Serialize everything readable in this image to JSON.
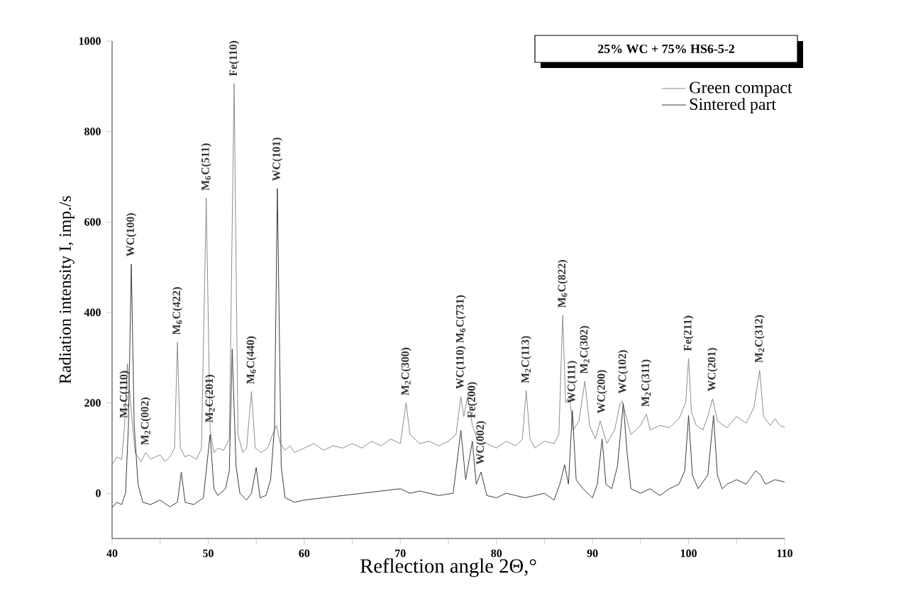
{
  "chart_data": {
    "type": "line",
    "title": "25% WC + 75% HS6-5-2",
    "xlabel": "Reflection angle 2Θ,°",
    "ylabel": "Radiation intensity I, imp./s",
    "xlim": [
      40,
      110
    ],
    "ylim": [
      -100,
      1000
    ],
    "xticks": [
      40,
      {
        "value": 45,
        "label": null
      },
      50,
      {
        "value": 55,
        "label": null
      },
      60,
      {
        "value": 65,
        "label": null
      },
      70,
      {
        "value": 75,
        "label": null
      },
      80,
      {
        "value": 85,
        "label": null
      },
      90,
      {
        "value": 95,
        "label": null
      },
      100,
      {
        "value": 105,
        "label": null
      },
      110
    ],
    "yticks": [
      0,
      200,
      400,
      600,
      800,
      1000
    ],
    "legend": "top right",
    "grid": false,
    "marker": "none",
    "line_style": "solid",
    "series": [
      {
        "name": "Green compact",
        "color": "#8c8c8c",
        "x": [
          40,
          40.5,
          41,
          41.3,
          41.6,
          42,
          42.4,
          43,
          43.5,
          44,
          45,
          45.5,
          46,
          46.5,
          46.8,
          47.1,
          47.6,
          48,
          48.8,
          49.3,
          49.8,
          50.2,
          50.6,
          51,
          51.6,
          52.2,
          52.7,
          53.1,
          53.6,
          54,
          54.5,
          54.9,
          55.5,
          56.2,
          56.7,
          57.1,
          57.5,
          58,
          58.5,
          59,
          60,
          61,
          62,
          63,
          64,
          65,
          66,
          67,
          68,
          69,
          70,
          70.6,
          71,
          72,
          73,
          74,
          75,
          75.8,
          76.3,
          76.6,
          77,
          77.5,
          78,
          79,
          80,
          81,
          82,
          82.7,
          83.1,
          83.5,
          84,
          85,
          86,
          86.5,
          86.9,
          87.2,
          87.6,
          88,
          88.6,
          89.2,
          89.7,
          90.3,
          90.8,
          91.5,
          92.3,
          92.9,
          93.1,
          93.5,
          94,
          95,
          95.6,
          96,
          97,
          98,
          99,
          99.7,
          100,
          100.3,
          100.8,
          101.5,
          102,
          102.5,
          103,
          104,
          105,
          106,
          106.8,
          107.4,
          107.8,
          108.5,
          109,
          109.5,
          110
        ],
        "values": [
          63,
          80,
          75,
          150,
          287,
          180,
          90,
          70,
          90,
          75,
          85,
          70,
          80,
          100,
          334,
          100,
          80,
          85,
          75,
          100,
          653,
          140,
          90,
          100,
          95,
          120,
          906,
          130,
          90,
          100,
          225,
          100,
          90,
          100,
          130,
          150,
          110,
          95,
          105,
          90,
          100,
          110,
          95,
          105,
          100,
          110,
          100,
          115,
          105,
          120,
          110,
          200,
          130,
          110,
          115,
          105,
          115,
          130,
          214,
          170,
          214,
          150,
          120,
          110,
          100,
          115,
          105,
          120,
          227,
          120,
          100,
          115,
          110,
          130,
          394,
          200,
          214,
          140,
          160,
          248,
          150,
          120,
          160,
          110,
          140,
          200,
          204,
          170,
          130,
          150,
          175,
          140,
          150,
          145,
          165,
          200,
          298,
          180,
          150,
          140,
          170,
          209,
          160,
          145,
          170,
          155,
          190,
          272,
          170,
          150,
          165,
          150,
          146
        ]
      },
      {
        "name": "Sintered part",
        "color": "#3c3c3c",
        "x": [
          40,
          40.5,
          41,
          41.4,
          41.7,
          42,
          42.3,
          42.7,
          43.2,
          44,
          45,
          46,
          46.8,
          47.2,
          47.6,
          48.5,
          49.5,
          50.2,
          50.6,
          51,
          51.8,
          52.2,
          52.5,
          52.9,
          53.3,
          54,
          54.5,
          55,
          55.4,
          56,
          56.5,
          56.9,
          57.2,
          57.6,
          58,
          59,
          60,
          62,
          64,
          66,
          68,
          70,
          71,
          72,
          74,
          75.5,
          76.3,
          76.8,
          77.5,
          77.9,
          78.4,
          79,
          80,
          81,
          82,
          83,
          84,
          85,
          86,
          86.6,
          87.1,
          87.5,
          87.9,
          88.3,
          89,
          90,
          90.5,
          91,
          91.4,
          92,
          92.6,
          93.2,
          93.6,
          94,
          95,
          96,
          97,
          98,
          99,
          99.6,
          100,
          100.4,
          101,
          102,
          102.6,
          103,
          103.5,
          104,
          105,
          106,
          107,
          107.5,
          108,
          109,
          110
        ],
        "values": [
          -31,
          -20,
          -25,
          0,
          150,
          507,
          150,
          20,
          -20,
          -25,
          -15,
          -30,
          -20,
          47,
          -20,
          -25,
          -10,
          130,
          10,
          -5,
          10,
          50,
          319,
          60,
          0,
          -15,
          0,
          57,
          -10,
          -5,
          30,
          146,
          674,
          60,
          -10,
          -20,
          -15,
          -10,
          -5,
          0,
          5,
          10,
          0,
          5,
          -5,
          0,
          139,
          30,
          115,
          20,
          47,
          -5,
          -10,
          0,
          -5,
          -10,
          -5,
          0,
          -15,
          20,
          63,
          20,
          183,
          30,
          10,
          -10,
          20,
          120,
          20,
          10,
          60,
          199,
          90,
          10,
          0,
          10,
          -5,
          10,
          20,
          50,
          172,
          40,
          10,
          40,
          172,
          40,
          10,
          20,
          30,
          20,
          50,
          40,
          20,
          30,
          25
        ]
      }
    ],
    "annotations": [
      {
        "text": "M$_{2}$C(110)",
        "x": 41.3,
        "y": 150
      },
      {
        "text": "WC(100)",
        "x": 42,
        "y": 507
      },
      {
        "text": "M$_{2}$C(002)",
        "x": 43.5,
        "y": 90
      },
      {
        "text": "M$_{6}$C(422)",
        "x": 46.8,
        "y": 334
      },
      {
        "text": "M$_{6}$C(511)",
        "x": 49.8,
        "y": 653
      },
      {
        "text": "M$_{2}$C(201)",
        "x": 50.2,
        "y": 140
      },
      {
        "text": "Fe(110)",
        "x": 52.7,
        "y": 906
      },
      {
        "text": "M$_{6}$C(440)",
        "x": 54.5,
        "y": 225
      },
      {
        "text": "WC(101)",
        "x": 57.2,
        "y": 674
      },
      {
        "text": "M$_{2}$C(300)",
        "x": 70.6,
        "y": 200
      },
      {
        "text": "WC(110) M$_{6}$C(731)",
        "x": 76.3,
        "y": 214
      },
      {
        "text": "Fe(200)",
        "x": 77.5,
        "y": 115
      },
      {
        "text": "WC(002)",
        "x": 78.4,
        "y": 47
      },
      {
        "text": "M$_{2}$C(113)",
        "x": 83.1,
        "y": 227
      },
      {
        "text": "M$_{6}$C(822)",
        "x": 86.9,
        "y": 394
      },
      {
        "text": "WC(111)",
        "x": 87.9,
        "y": 183
      },
      {
        "text": "M$_{2}$C(302)",
        "x": 89.2,
        "y": 248
      },
      {
        "text": "WC(200)",
        "x": 91,
        "y": 120
      },
      {
        "text": "WC(102)",
        "x": 93.2,
        "y": 199
      },
      {
        "text": "M$_{2}$C(311)",
        "x": 95.6,
        "y": 175
      },
      {
        "text": "Fe(211)",
        "x": 100,
        "y": 298
      },
      {
        "text": "WC(201)",
        "x": 102.5,
        "y": 209
      },
      {
        "text": "M$_{2}$C(312)",
        "x": 107.4,
        "y": 272
      }
    ]
  }
}
